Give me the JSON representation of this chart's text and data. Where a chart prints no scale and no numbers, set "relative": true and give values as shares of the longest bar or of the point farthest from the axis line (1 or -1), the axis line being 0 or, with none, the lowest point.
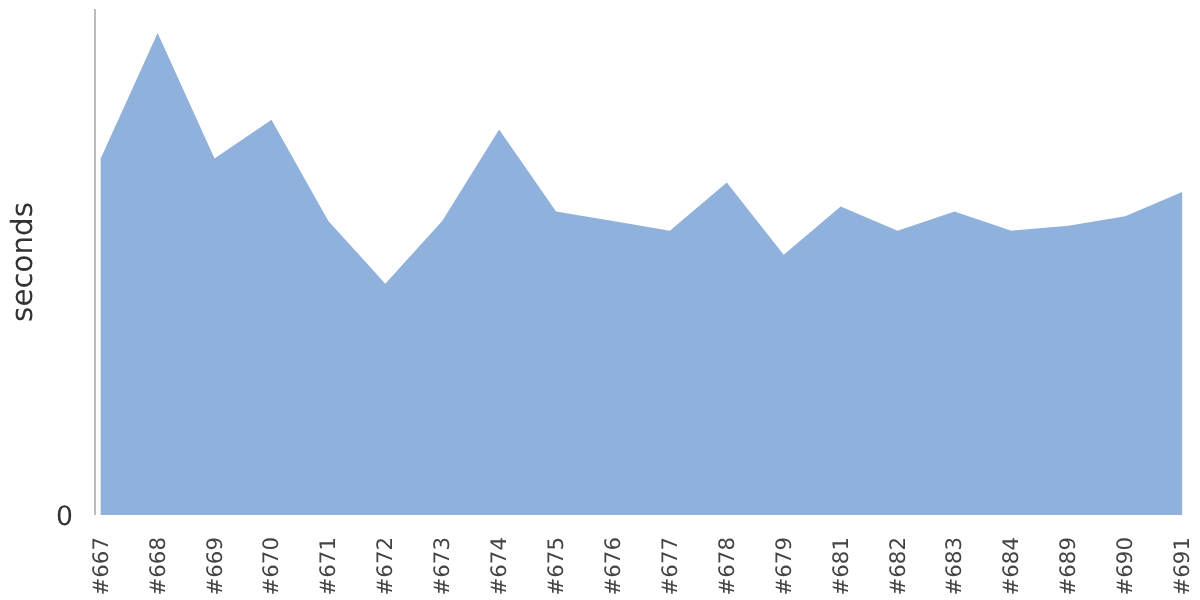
{
  "chart_data": {
    "type": "area",
    "ylabel": "seconds",
    "relative": true,
    "color": "#8fb1db",
    "categories": [
      "#667",
      "#668",
      "#669",
      "#670",
      "#671",
      "#672",
      "#673",
      "#674",
      "#675",
      "#676",
      "#677",
      "#678",
      "#679",
      "#681",
      "#682",
      "#683",
      "#684",
      "#689",
      "#690",
      "#691"
    ],
    "values": [
      0.74,
      1.0,
      0.74,
      0.82,
      0.61,
      0.48,
      0.61,
      0.8,
      0.63,
      0.61,
      0.59,
      0.69,
      0.54,
      0.64,
      0.59,
      0.63,
      0.59,
      0.6,
      0.62,
      0.67
    ],
    "annotations": [
      "0"
    ]
  }
}
